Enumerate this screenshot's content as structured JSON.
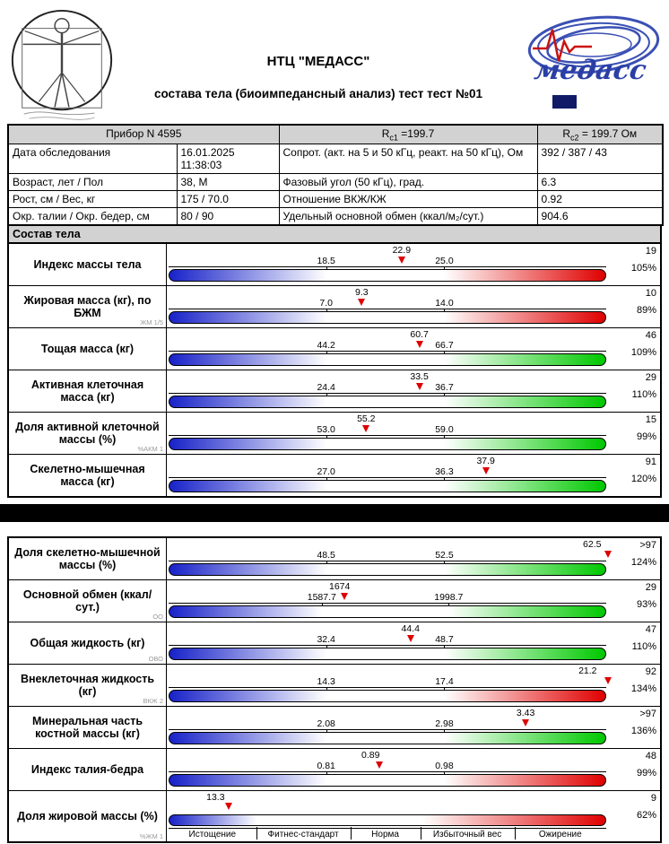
{
  "header": {
    "title": "НТЦ \"МЕДАСС\"",
    "subtitle": "состава тела (биоимпедансный анализ) тест тест №01"
  },
  "info_table": {
    "device": "Прибор N  4595",
    "rc1": {
      "base": "R",
      "sub": "c1",
      "rest": " =199.7"
    },
    "rc2": {
      "base": "R",
      "sub": "c2",
      "rest": " = 199.7 Ом"
    },
    "rows": [
      {
        "label": "Дата  обследования",
        "value": "16.01.2025 11:38:03",
        "param": "Сопрот. (акт. на 5 и 50 кГц, реакт. на 50 кГц), Ом",
        "param_value": "392 / 387 / 43"
      },
      {
        "label": "Возраст, лет / Пол",
        "value": "38,  М",
        "param": "Фазовый угол (50 кГц), град.",
        "param_value": "6.3"
      },
      {
        "label": "Рост, см / Вес, кг",
        "value": "175 / 70.0",
        "param": "Отношение ВКЖ/КЖ",
        "param_value": "0.92"
      },
      {
        "label": "Окр. талии / Окр. бедер, см",
        "value": "80 / 90",
        "param": "Удельный основной обмен (ккал/м₂/сут.)",
        "param_value": "904.6"
      }
    ]
  },
  "section_title": "Состав тела",
  "chart_data": {
    "type": "bar",
    "title": "Состав тела",
    "legend_note": "per-row gauge: value marker vs normal range (low–high); right column: percentile and percent of norm",
    "sections": [
      {
        "rows": [
          {
            "label": "Индекс  массы  тела",
            "value": "22.9",
            "low": "18.5",
            "high": "25.0",
            "low_pct": 36,
            "high_pct": 63,
            "marker_pct": 53,
            "percentile": "19",
            "percent": "105%",
            "end_color": "red"
          },
          {
            "label": "Жировая  масса  (кг), по  БЖМ",
            "sublabel": "ЖМ 1/5",
            "value": "9.3",
            "low": "7.0",
            "high": "14.0",
            "low_pct": 36,
            "high_pct": 63,
            "marker_pct": 44,
            "percentile": "10",
            "percent": "89%",
            "end_color": "red"
          },
          {
            "label": "Тощая  масса  (кг)",
            "value": "60.7",
            "low": "44.2",
            "high": "66.7",
            "low_pct": 36,
            "high_pct": 63,
            "marker_pct": 57,
            "percentile": "46",
            "percent": "109%",
            "end_color": "green"
          },
          {
            "label": "Активная  клеточная масса  (кг)",
            "value": "33.5",
            "low": "24.4",
            "high": "36.7",
            "low_pct": 36,
            "high_pct": 63,
            "marker_pct": 57,
            "percentile": "29",
            "percent": "110%",
            "end_color": "green"
          },
          {
            "label": "Доля  активной клеточной  массы  (%)",
            "sublabel": "%АКМ 1",
            "value": "55.2",
            "low": "53.0",
            "high": "59.0",
            "low_pct": 36,
            "high_pct": 63,
            "marker_pct": 45,
            "percentile": "15",
            "percent": "99%",
            "end_color": "green"
          },
          {
            "label": "Скелетно-мышечная масса  (кг)",
            "value": "37.9",
            "low": "27.0",
            "high": "36.3",
            "low_pct": 36,
            "high_pct": 63,
            "marker_pct": 72,
            "percentile": "91",
            "percent": "120%",
            "end_color": "green"
          }
        ]
      },
      {
        "rows": [
          {
            "label": "Доля скелетно-мышечной массы  (%)",
            "value": "62.5",
            "low": "48.5",
            "high": "52.5",
            "low_pct": 36,
            "high_pct": 63,
            "marker_pct": 99.5,
            "value_pct": 96,
            "percentile": ">97",
            "percent": "124%",
            "end_color": "green"
          },
          {
            "label": "Основной  обмен (ккал/сут.)",
            "sublabel": "ОО",
            "value": "1674",
            "low": "1587.7",
            "high": "1998.7",
            "low_pct": 35,
            "high_pct": 64,
            "marker_pct": 40,
            "value_pct": 39,
            "percentile": "29",
            "percent": "93%",
            "end_color": "green"
          },
          {
            "label": "Общая  жидкость  (кг)",
            "sublabel": "ОВО",
            "value": "44.4",
            "low": "32.4",
            "high": "48.7",
            "low_pct": 36,
            "high_pct": 63,
            "marker_pct": 55,
            "percentile": "47",
            "percent": "110%",
            "end_color": "green"
          },
          {
            "label": "Внеклеточная жидкость (кг)",
            "sublabel": "ВКЖ 2",
            "value": "21.2",
            "low": "14.3",
            "high": "17.4",
            "low_pct": 36,
            "high_pct": 63,
            "marker_pct": 99.5,
            "value_pct": 95,
            "percentile": "92",
            "percent": "134%",
            "end_color": "red"
          },
          {
            "label": "Минеральная  часть костной  массы  (кг)",
            "value": "3.43",
            "low": "2.08",
            "high": "2.98",
            "low_pct": 36,
            "high_pct": 63,
            "marker_pct": 81,
            "percentile": ">97",
            "percent": "136%",
            "end_color": "green"
          },
          {
            "label": "Индекс  талия-бедра",
            "value": "0.89",
            "low": "0.81",
            "high": "0.98",
            "low_pct": 36,
            "high_pct": 63,
            "marker_pct": 48,
            "value_pct": 46,
            "percentile": "48",
            "percent": "99%",
            "end_color": "red"
          },
          {
            "label": "Доля жировой массы (%)",
            "sublabel": "%ЖМ 1",
            "value": "13.3",
            "marker_pct": 14,
            "value_pct": 11,
            "percentile": "9",
            "percent": "62%",
            "end_color": "red",
            "categories": true,
            "grad_low": 20,
            "grad_high": 58
          }
        ]
      }
    ],
    "fat_scale": {
      "labels": [
        "Истощение",
        "Фитнес-стандарт",
        "Норма",
        "Избыточный вес",
        "Ожирение"
      ],
      "boundaries_pct": [
        20,
        41.5,
        57.5,
        79
      ]
    },
    "colors": {
      "bar_blue": "#1822c8",
      "bar_red": "#e00000",
      "bar_green": "#00c800",
      "marker_red": "#dd0000"
    }
  }
}
